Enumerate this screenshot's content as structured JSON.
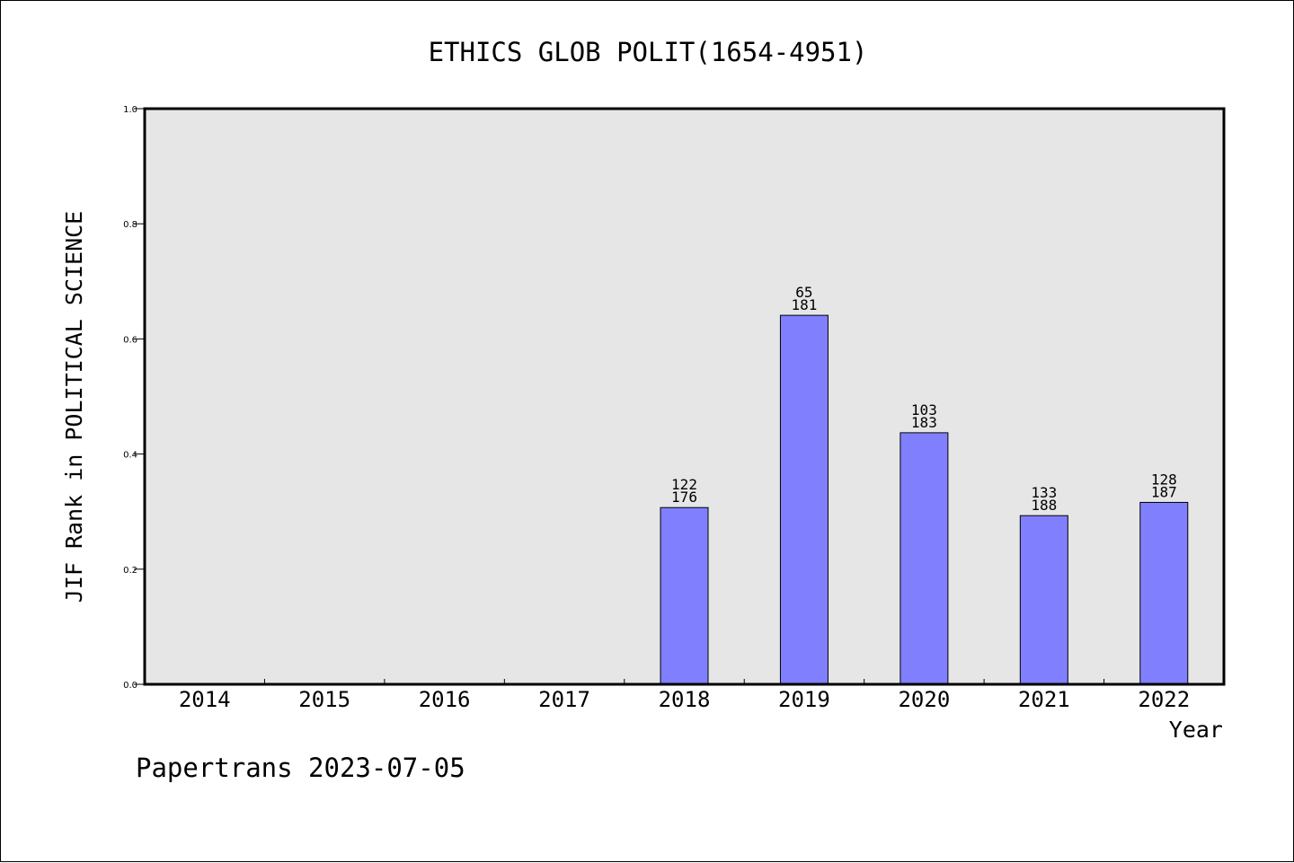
{
  "chart_data": {
    "type": "bar",
    "title": "ETHICS GLOB POLIT(1654-4951)",
    "xlabel": "Year",
    "ylabel": "JIF Rank in POLITICAL SCIENCE",
    "ylim": [
      0,
      1.0
    ],
    "yticks": [
      "0.0",
      "0.2",
      "0.4",
      "0.6",
      "0.8",
      "1.0"
    ],
    "categories": [
      "2014",
      "2015",
      "2016",
      "2017",
      "2018",
      "2019",
      "2020",
      "2021",
      "2022"
    ],
    "values": [
      null,
      null,
      null,
      null,
      0.307,
      0.641,
      0.437,
      0.293,
      0.316
    ],
    "bar_labels": [
      null,
      null,
      null,
      null,
      [
        "122",
        "176"
      ],
      [
        "65",
        "181"
      ],
      [
        "103",
        "183"
      ],
      [
        "133",
        "188"
      ],
      [
        "128",
        "187"
      ]
    ],
    "grid": false,
    "colors": {
      "bar": "#8080ff",
      "plot_bg": "#e6e6e6",
      "axis": "#000000"
    }
  },
  "footer": "Papertrans 2023-07-05"
}
